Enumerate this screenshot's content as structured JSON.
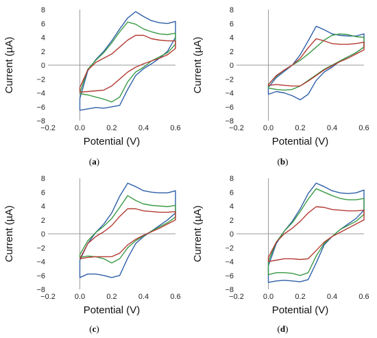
{
  "figure": {
    "panels": [
      {
        "id": "a",
        "caption_open": "(",
        "caption_letter": "a",
        "caption_close": ")"
      },
      {
        "id": "b",
        "caption_open": "(",
        "caption_letter": "b",
        "caption_close": ")"
      },
      {
        "id": "c",
        "caption_open": "(",
        "caption_letter": "c",
        "caption_close": ")"
      },
      {
        "id": "d",
        "caption_open": "(",
        "caption_letter": "d",
        "caption_close": ")"
      }
    ]
  },
  "chart_data": [
    {
      "type": "line",
      "xlabel": "Potential (V)",
      "ylabel": "Current (µA)",
      "xlim": [
        -0.2,
        0.6
      ],
      "ylim": [
        -8,
        8
      ],
      "xticks": [
        -0.2,
        0.0,
        0.2,
        0.4,
        0.6
      ],
      "yticks": [
        -8,
        -6,
        -4,
        -2,
        0,
        2,
        4,
        6,
        8
      ],
      "xtick_labels": [
        "−0.2",
        "0.0",
        "0.2",
        "0.4",
        "0.6"
      ],
      "ytick_labels": [
        "−8",
        "−6",
        "−4",
        "−2",
        "0",
        "2",
        "4",
        "6",
        "8"
      ],
      "grid": false,
      "series": [
        {
          "color": "#2E5FA8",
          "x": [
            0.0,
            0.05,
            0.1,
            0.15,
            0.2,
            0.25,
            0.3,
            0.35,
            0.4,
            0.45,
            0.5,
            0.55,
            0.6,
            0.6,
            0.55,
            0.5,
            0.45,
            0.4,
            0.35,
            0.3,
            0.25,
            0.2,
            0.15,
            0.1,
            0.05,
            0.0,
            0.0
          ],
          "y": [
            -4.8,
            -0.8,
            0.8,
            2.0,
            3.5,
            5.2,
            6.8,
            7.7,
            7.0,
            6.4,
            6.1,
            6.0,
            6.3,
            4.0,
            2.0,
            1.0,
            0.2,
            -0.5,
            -1.5,
            -3.5,
            -5.8,
            -6.0,
            -6.2,
            -6.1,
            -6.3,
            -6.5,
            -4.8
          ]
        },
        {
          "color": "#3A9A45",
          "x": [
            0.0,
            0.05,
            0.1,
            0.15,
            0.2,
            0.25,
            0.3,
            0.35,
            0.4,
            0.45,
            0.5,
            0.55,
            0.6,
            0.6,
            0.55,
            0.5,
            0.45,
            0.4,
            0.35,
            0.3,
            0.25,
            0.2,
            0.15,
            0.1,
            0.05,
            0.0,
            0.0
          ],
          "y": [
            -4.0,
            -0.6,
            0.7,
            1.8,
            3.2,
            4.8,
            6.2,
            5.9,
            5.2,
            4.8,
            4.5,
            4.4,
            4.6,
            3.0,
            1.8,
            1.2,
            0.6,
            -0.3,
            -1.0,
            -2.4,
            -4.6,
            -5.3,
            -4.9,
            -4.6,
            -4.3,
            -4.1,
            -4.0
          ]
        },
        {
          "color": "#B33A32",
          "x": [
            0.0,
            0.05,
            0.1,
            0.15,
            0.2,
            0.25,
            0.3,
            0.35,
            0.4,
            0.45,
            0.5,
            0.55,
            0.6,
            0.6,
            0.55,
            0.5,
            0.45,
            0.4,
            0.35,
            0.3,
            0.25,
            0.2,
            0.15,
            0.1,
            0.05,
            0.0,
            0.0
          ],
          "y": [
            -3.2,
            -0.7,
            0.4,
            1.0,
            1.6,
            2.6,
            3.6,
            4.3,
            4.3,
            3.8,
            3.6,
            3.5,
            3.5,
            2.4,
            1.5,
            1.0,
            0.6,
            0.2,
            -0.3,
            -1.0,
            -2.0,
            -3.0,
            -3.6,
            -3.7,
            -3.8,
            -3.9,
            -3.2
          ]
        }
      ]
    },
    {
      "type": "line",
      "xlabel": "Potential (V)",
      "ylabel": "Current (µA)",
      "xlim": [
        -0.2,
        0.6
      ],
      "ylim": [
        -8,
        8
      ],
      "xticks": [
        -0.2,
        0.0,
        0.2,
        0.4,
        0.6
      ],
      "yticks": [
        -8,
        -6,
        -4,
        -2,
        0,
        2,
        4,
        6,
        8
      ],
      "xtick_labels": [
        "−0.2",
        "0.0",
        "0.2",
        "0.4",
        "0.6"
      ],
      "ytick_labels": [
        "−8",
        "−6",
        "−4",
        "−2",
        "0",
        "2",
        "4",
        "6",
        "8"
      ],
      "grid": false,
      "series": [
        {
          "color": "#2E5FA8",
          "x": [
            0.0,
            0.05,
            0.1,
            0.15,
            0.2,
            0.25,
            0.3,
            0.35,
            0.4,
            0.45,
            0.5,
            0.55,
            0.6,
            0.6,
            0.55,
            0.5,
            0.45,
            0.4,
            0.35,
            0.3,
            0.25,
            0.2,
            0.15,
            0.1,
            0.05,
            0.0,
            0.0
          ],
          "y": [
            -3.2,
            -1.8,
            -0.9,
            0.0,
            1.5,
            3.5,
            5.6,
            5.1,
            4.5,
            4.3,
            4.2,
            4.2,
            4.5,
            2.6,
            1.8,
            1.2,
            0.6,
            -0.3,
            -1.0,
            -2.2,
            -4.2,
            -5.0,
            -4.4,
            -4.0,
            -3.8,
            -4.2,
            -3.2
          ]
        },
        {
          "color": "#3A9A45",
          "x": [
            0.0,
            0.05,
            0.1,
            0.15,
            0.2,
            0.25,
            0.3,
            0.35,
            0.4,
            0.45,
            0.5,
            0.55,
            0.6,
            0.6,
            0.55,
            0.5,
            0.45,
            0.4,
            0.35,
            0.3,
            0.25,
            0.2,
            0.15,
            0.1,
            0.05,
            0.0,
            0.0
          ],
          "y": [
            -2.8,
            -1.6,
            -0.7,
            0.0,
            0.7,
            1.6,
            2.6,
            3.6,
            4.3,
            4.5,
            4.4,
            4.1,
            4.0,
            2.6,
            1.8,
            1.2,
            0.6,
            0.0,
            -0.6,
            -1.4,
            -2.2,
            -3.0,
            -3.5,
            -3.6,
            -3.5,
            -3.3,
            -2.8
          ]
        },
        {
          "color": "#B33A32",
          "x": [
            0.0,
            0.05,
            0.1,
            0.15,
            0.2,
            0.25,
            0.3,
            0.35,
            0.4,
            0.45,
            0.5,
            0.55,
            0.6,
            0.6,
            0.55,
            0.5,
            0.45,
            0.4,
            0.35,
            0.3,
            0.25,
            0.2,
            0.15,
            0.1,
            0.05,
            0.0,
            0.0
          ],
          "y": [
            -2.8,
            -1.5,
            -0.7,
            0.0,
            1.0,
            2.5,
            3.8,
            3.5,
            3.1,
            3.0,
            3.0,
            3.1,
            3.3,
            2.2,
            1.6,
            1.0,
            0.5,
            -0.1,
            -0.7,
            -1.5,
            -2.3,
            -3.0,
            -3.0,
            -2.9,
            -2.8,
            -2.9,
            -2.8
          ]
        }
      ]
    },
    {
      "type": "line",
      "xlabel": "Potential (V)",
      "ylabel": "Current (µA)",
      "xlim": [
        -0.2,
        0.6
      ],
      "ylim": [
        -8,
        8
      ],
      "xticks": [
        -0.2,
        0.0,
        0.2,
        0.4,
        0.6
      ],
      "yticks": [
        -8,
        -6,
        -4,
        -2,
        0,
        2,
        4,
        6,
        8
      ],
      "xtick_labels": [
        "−0.2",
        "0.0",
        "0.2",
        "0.4",
        "0.6"
      ],
      "ytick_labels": [
        "−8",
        "−6",
        "−4",
        "−2",
        "0",
        "2",
        "4",
        "6",
        "8"
      ],
      "grid": false,
      "series": [
        {
          "color": "#2E5FA8",
          "x": [
            0.0,
            0.05,
            0.1,
            0.15,
            0.2,
            0.25,
            0.3,
            0.35,
            0.4,
            0.45,
            0.5,
            0.55,
            0.6,
            0.6,
            0.55,
            0.5,
            0.45,
            0.4,
            0.35,
            0.3,
            0.25,
            0.2,
            0.15,
            0.1,
            0.05,
            0.0,
            0.0
          ],
          "y": [
            -3.8,
            -1.4,
            0.2,
            1.4,
            3.0,
            5.4,
            7.3,
            6.8,
            6.2,
            6.0,
            5.9,
            5.9,
            6.2,
            3.0,
            2.0,
            1.2,
            0.4,
            -0.4,
            -1.4,
            -3.5,
            -6.0,
            -6.3,
            -6.0,
            -5.8,
            -5.8,
            -6.3,
            -3.8
          ]
        },
        {
          "color": "#3A9A45",
          "x": [
            0.0,
            0.05,
            0.1,
            0.15,
            0.2,
            0.25,
            0.3,
            0.35,
            0.4,
            0.45,
            0.5,
            0.55,
            0.6,
            0.6,
            0.55,
            0.5,
            0.45,
            0.4,
            0.35,
            0.3,
            0.25,
            0.2,
            0.15,
            0.1,
            0.05,
            0.0,
            0.0
          ],
          "y": [
            -3.0,
            -1.0,
            0.2,
            1.1,
            2.2,
            3.8,
            5.5,
            4.8,
            4.3,
            4.1,
            4.0,
            3.9,
            4.1,
            2.4,
            1.6,
            1.0,
            0.4,
            -0.3,
            -1.0,
            -2.0,
            -3.6,
            -4.2,
            -3.6,
            -3.3,
            -3.2,
            -3.4,
            -3.0
          ]
        },
        {
          "color": "#B33A32",
          "x": [
            0.0,
            0.05,
            0.1,
            0.15,
            0.2,
            0.25,
            0.3,
            0.35,
            0.4,
            0.45,
            0.5,
            0.55,
            0.6,
            0.6,
            0.55,
            0.5,
            0.45,
            0.4,
            0.35,
            0.3,
            0.25,
            0.2,
            0.15,
            0.1,
            0.05,
            0.0,
            0.0
          ],
          "y": [
            -3.6,
            -1.4,
            -0.4,
            0.3,
            1.2,
            2.5,
            3.6,
            3.6,
            3.3,
            3.2,
            3.1,
            3.1,
            3.2,
            2.0,
            1.4,
            0.8,
            0.3,
            -0.2,
            -0.8,
            -1.6,
            -2.8,
            -3.3,
            -3.3,
            -3.3,
            -3.4,
            -3.6,
            -3.6
          ]
        }
      ]
    },
    {
      "type": "line",
      "xlabel": "Potential (V)",
      "ylabel": "Current (µA)",
      "xlim": [
        -0.2,
        0.6
      ],
      "ylim": [
        -8,
        8
      ],
      "xticks": [
        -0.2,
        0.0,
        0.2,
        0.4,
        0.6
      ],
      "yticks": [
        -8,
        -6,
        -4,
        -2,
        0,
        2,
        4,
        6,
        8
      ],
      "xtick_labels": [
        "−0.2",
        "0.0",
        "0.2",
        "0.4",
        "0.6"
      ],
      "ytick_labels": [
        "−8",
        "−6",
        "−4",
        "−2",
        "0",
        "2",
        "4",
        "6",
        "8"
      ],
      "grid": false,
      "series": [
        {
          "color": "#2E5FA8",
          "x": [
            0.0,
            0.05,
            0.1,
            0.15,
            0.2,
            0.25,
            0.3,
            0.35,
            0.4,
            0.45,
            0.5,
            0.55,
            0.6,
            0.6,
            0.55,
            0.5,
            0.45,
            0.4,
            0.35,
            0.3,
            0.25,
            0.2,
            0.15,
            0.1,
            0.05,
            0.0,
            0.0
          ],
          "y": [
            -4.6,
            -1.4,
            0.4,
            1.8,
            3.6,
            5.8,
            7.3,
            6.8,
            6.2,
            5.9,
            5.8,
            5.9,
            6.3,
            3.4,
            2.2,
            1.4,
            0.6,
            -0.4,
            -1.6,
            -4.2,
            -6.6,
            -6.9,
            -6.8,
            -6.7,
            -6.8,
            -7.0,
            -4.6
          ]
        },
        {
          "color": "#3A9A45",
          "x": [
            0.0,
            0.05,
            0.1,
            0.15,
            0.2,
            0.25,
            0.3,
            0.35,
            0.4,
            0.45,
            0.5,
            0.55,
            0.6,
            0.6,
            0.55,
            0.5,
            0.45,
            0.4,
            0.35,
            0.3,
            0.25,
            0.2,
            0.15,
            0.1,
            0.05,
            0.0,
            0.0
          ],
          "y": [
            -4.0,
            -1.2,
            0.4,
            1.6,
            3.2,
            5.0,
            6.5,
            6.0,
            5.5,
            5.1,
            4.9,
            4.9,
            5.1,
            2.8,
            1.8,
            1.2,
            0.6,
            -0.4,
            -1.4,
            -3.2,
            -5.6,
            -6.0,
            -5.7,
            -5.6,
            -5.6,
            -5.9,
            -4.0
          ]
        },
        {
          "color": "#B33A32",
          "x": [
            0.0,
            0.05,
            0.1,
            0.15,
            0.2,
            0.25,
            0.3,
            0.35,
            0.4,
            0.45,
            0.5,
            0.55,
            0.6,
            0.6,
            0.55,
            0.5,
            0.45,
            0.4,
            0.35,
            0.3,
            0.25,
            0.2,
            0.15,
            0.1,
            0.05,
            0.0,
            0.0
          ],
          "y": [
            -3.4,
            -1.2,
            0.0,
            0.8,
            1.8,
            3.0,
            3.9,
            3.8,
            3.5,
            3.4,
            3.3,
            3.3,
            3.4,
            2.0,
            1.4,
            0.8,
            0.2,
            -0.4,
            -1.2,
            -2.4,
            -3.6,
            -3.7,
            -3.6,
            -3.6,
            -3.8,
            -4.0,
            -3.4
          ]
        }
      ]
    }
  ]
}
